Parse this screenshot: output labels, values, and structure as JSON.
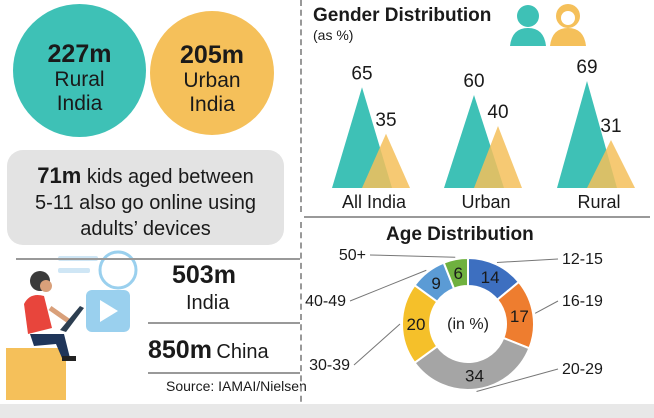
{
  "rural": {
    "value": "227m",
    "line1": "Rural",
    "line2": "India"
  },
  "urban": {
    "value": "205m",
    "line1": "Urban",
    "line2": "India"
  },
  "kids": {
    "value": "71m",
    "line1_rest": " kids aged between",
    "line2": "5-11 also go online using",
    "line3": "adults’ devices"
  },
  "india": {
    "value": "503m",
    "label": "India"
  },
  "china": {
    "value": "850m",
    "label": "China"
  },
  "source": "Source: IAMAI/Nielsen",
  "colors": {
    "teal": "#3ec1b6",
    "yellow": "#f5c05a",
    "gray": "#e3e3e3"
  },
  "chart_data": [
    {
      "type": "area",
      "title": "Gender Distribution",
      "subtitle": "(as %)",
      "categories": [
        "All India",
        "Urban",
        "Rural"
      ],
      "series": [
        {
          "name": "",
          "color": "#3ec1b6",
          "values": [
            65,
            60,
            69
          ]
        },
        {
          "name": "",
          "color": "#f5c05a",
          "values": [
            35,
            40,
            31
          ]
        }
      ],
      "icons": [
        "male-user-icon",
        "female-user-icon"
      ]
    },
    {
      "type": "pie",
      "title": "Age Distribution",
      "center_label": "(in %)",
      "slices": [
        {
          "label": "12-15",
          "value": 14,
          "color": "#3d6fc0"
        },
        {
          "label": "16-19",
          "value": 17,
          "color": "#ee7d2f"
        },
        {
          "label": "20-29",
          "value": 34,
          "color": "#a5a5a5"
        },
        {
          "label": "30-39",
          "value": 20,
          "color": "#f5c02a"
        },
        {
          "label": "40-49",
          "value": 9,
          "color": "#5b9bd5"
        },
        {
          "label": "50+",
          "value": 6,
          "color": "#6fb13f"
        }
      ]
    }
  ]
}
